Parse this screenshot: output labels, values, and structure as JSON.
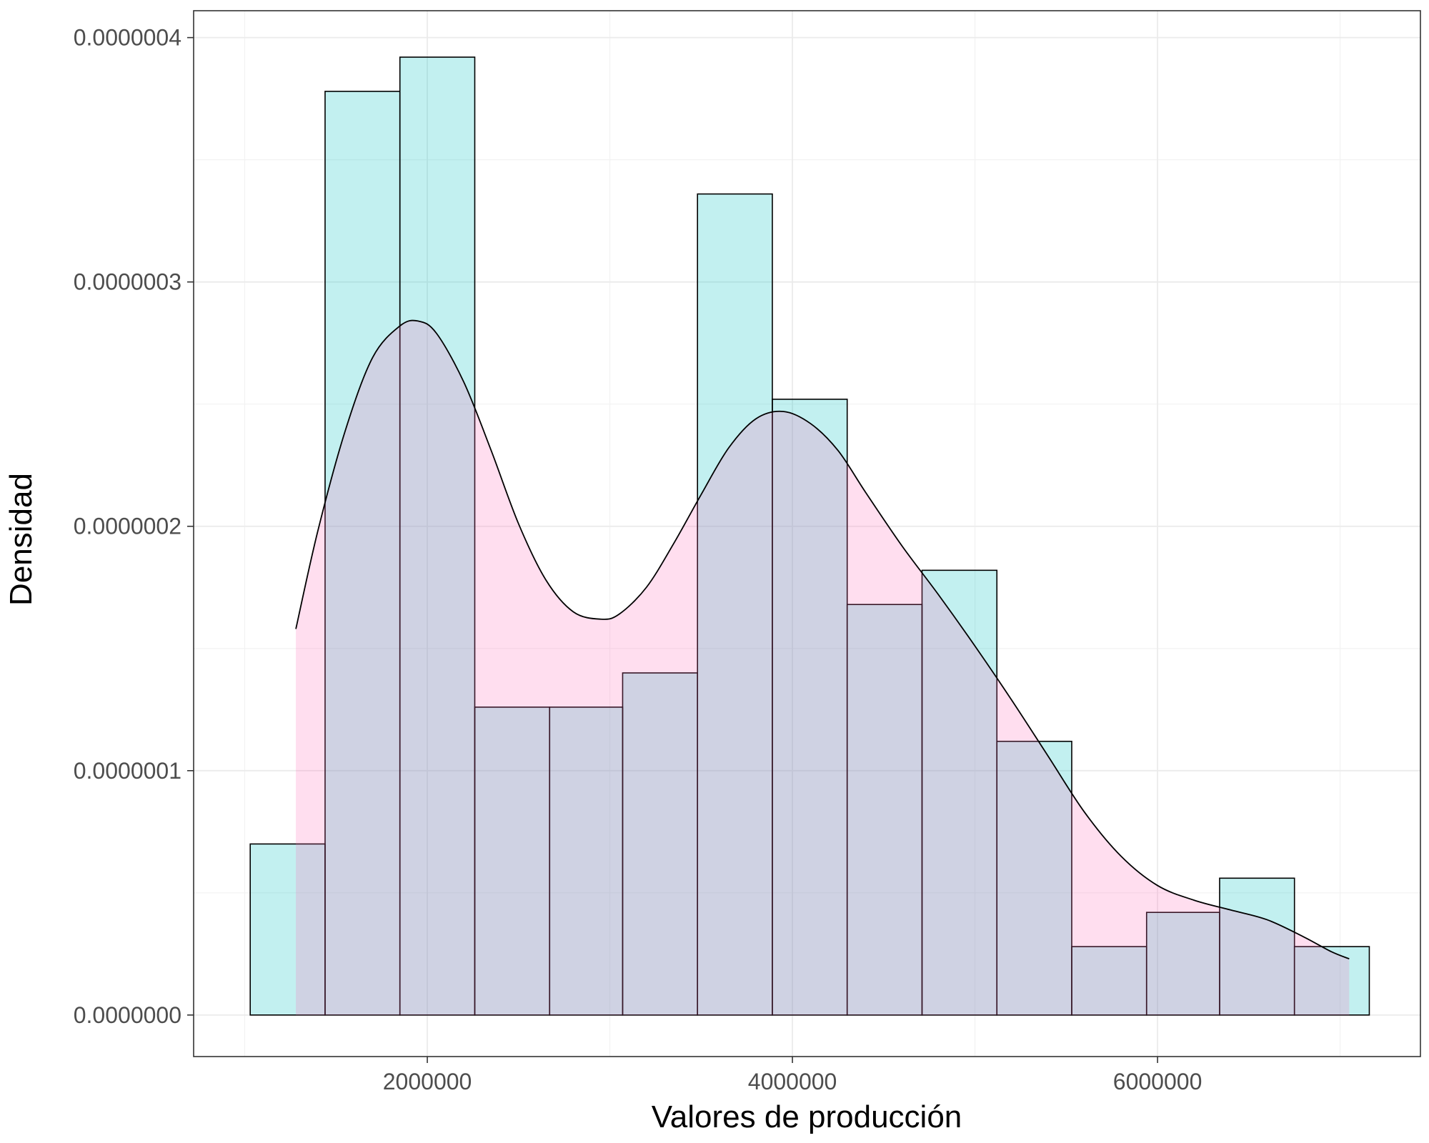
{
  "chart_data": {
    "type": "histogram",
    "title": "",
    "xlabel": "Valores de producción",
    "ylabel": "Densidad",
    "xlim": [
      720000,
      7440000
    ],
    "ylim": [
      -1.7e-08,
      4.11e-07
    ],
    "x_ticks": [
      2000000,
      4000000,
      6000000
    ],
    "x_tick_labels": [
      "2000000",
      "4000000",
      "6000000"
    ],
    "y_ticks": [
      0,
      1e-07,
      2e-07,
      3e-07,
      4e-07
    ],
    "y_tick_labels": [
      "0.0000000",
      "0.0000001",
      "0.0000002",
      "0.0000003",
      "0.0000004"
    ],
    "grid": true,
    "histogram": {
      "fill_color": "#00c0c0",
      "fill_opacity": 0.24,
      "stroke": "#000000",
      "bin_edges": [
        1030000,
        1440000,
        1850000,
        2260000,
        2670000,
        3070000,
        3480000,
        3890000,
        4300000,
        4710000,
        5120000,
        5530000,
        5940000,
        6340000,
        6750000,
        7160000
      ],
      "densities": [
        7e-08,
        3.78e-07,
        3.92e-07,
        1.26e-07,
        1.26e-07,
        1.4e-07,
        3.36e-07,
        2.52e-07,
        1.68e-07,
        1.82e-07,
        1.12e-07,
        2.8e-08,
        4.2e-08,
        5.6e-08,
        2.8e-08
      ]
    },
    "density_curve": {
      "fill_color": "#ff69b4",
      "fill_opacity": 0.22,
      "stroke": "#000000",
      "x": [
        1280000,
        1400000,
        1550000,
        1700000,
        1850000,
        1950000,
        2050000,
        2200000,
        2350000,
        2500000,
        2650000,
        2800000,
        2950000,
        3050000,
        3200000,
        3350000,
        3500000,
        3650000,
        3800000,
        3950000,
        4100000,
        4250000,
        4400000,
        4600000,
        4800000,
        5000000,
        5200000,
        5400000,
        5600000,
        5800000,
        6000000,
        6200000,
        6400000,
        6600000,
        6800000,
        6950000,
        7050000
      ],
      "y": [
        1.58e-07,
        1.98e-07,
        2.39e-07,
        2.69e-07,
        2.82e-07,
        2.84e-07,
        2.79e-07,
        2.59e-07,
        2.31e-07,
        2.01e-07,
        1.78e-07,
        1.65e-07,
        1.62e-07,
        1.64e-07,
        1.75e-07,
        1.93e-07,
        2.13e-07,
        2.32e-07,
        2.44e-07,
        2.47e-07,
        2.42e-07,
        2.31e-07,
        2.14e-07,
        1.92e-07,
        1.72e-07,
        1.51e-07,
        1.29e-07,
        1.06e-07,
        8.3e-08,
        6.5e-08,
        5.3e-08,
        4.7e-08,
        4.3e-08,
        3.9e-08,
        3.2e-08,
        2.6e-08,
        2.3e-08
      ]
    }
  }
}
